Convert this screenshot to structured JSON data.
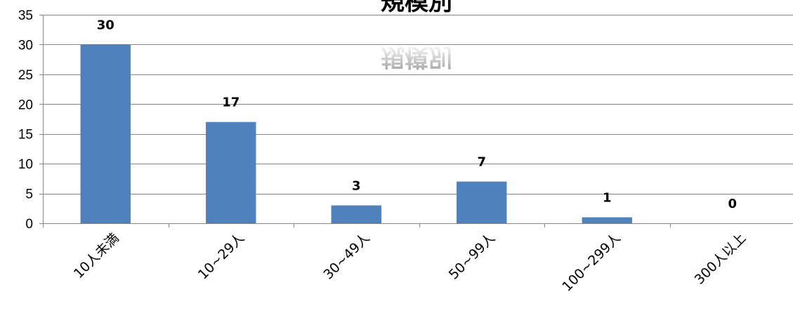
{
  "chart_data": {
    "type": "bar",
    "title": "規模別",
    "xlabel": "",
    "ylabel": "",
    "categories": [
      "10人未満",
      "10~29人",
      "30~49人",
      "50~99人",
      "100~299人",
      "300人以上"
    ],
    "values": [
      30,
      17,
      3,
      7,
      1,
      0
    ],
    "ylim": [
      0,
      35
    ],
    "yticks": [
      0,
      5,
      10,
      15,
      20,
      25,
      30,
      35
    ],
    "grid": true,
    "legend": "none",
    "bar_color": "#4f81bd",
    "grid_color": "#868686"
  }
}
